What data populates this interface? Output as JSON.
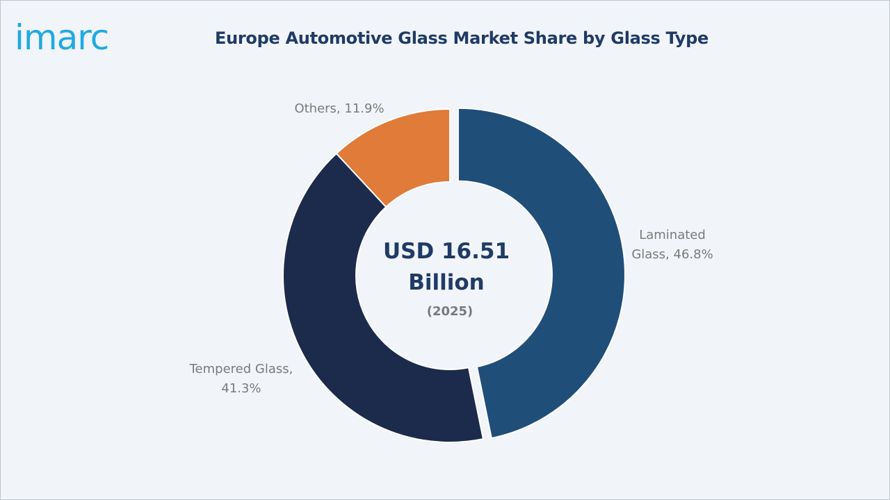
{
  "brand": {
    "logo_text": "imarc",
    "logo_color": "#1faae1"
  },
  "chart_data": {
    "type": "pie",
    "title": "Europe Automotive Glass Market Share by Glass Type",
    "categories": [
      "Laminated Glass",
      "Tempered Glass",
      "Others"
    ],
    "values": [
      46.8,
      41.3,
      11.9
    ],
    "unit": "%",
    "colors": [
      "#1f4e79",
      "#1c2b4b",
      "#e07b39"
    ],
    "labels": [
      [
        "Laminated",
        "Glass, 46.8%"
      ],
      [
        "Tempered Glass,",
        "41.3%"
      ],
      [
        "Others, 11.9%"
      ]
    ],
    "donut": true,
    "exploded": "Laminated Glass",
    "center_text": {
      "line1": "USD 16.51",
      "line2": "Billion",
      "line3": "(2025)"
    },
    "legend": "none"
  }
}
